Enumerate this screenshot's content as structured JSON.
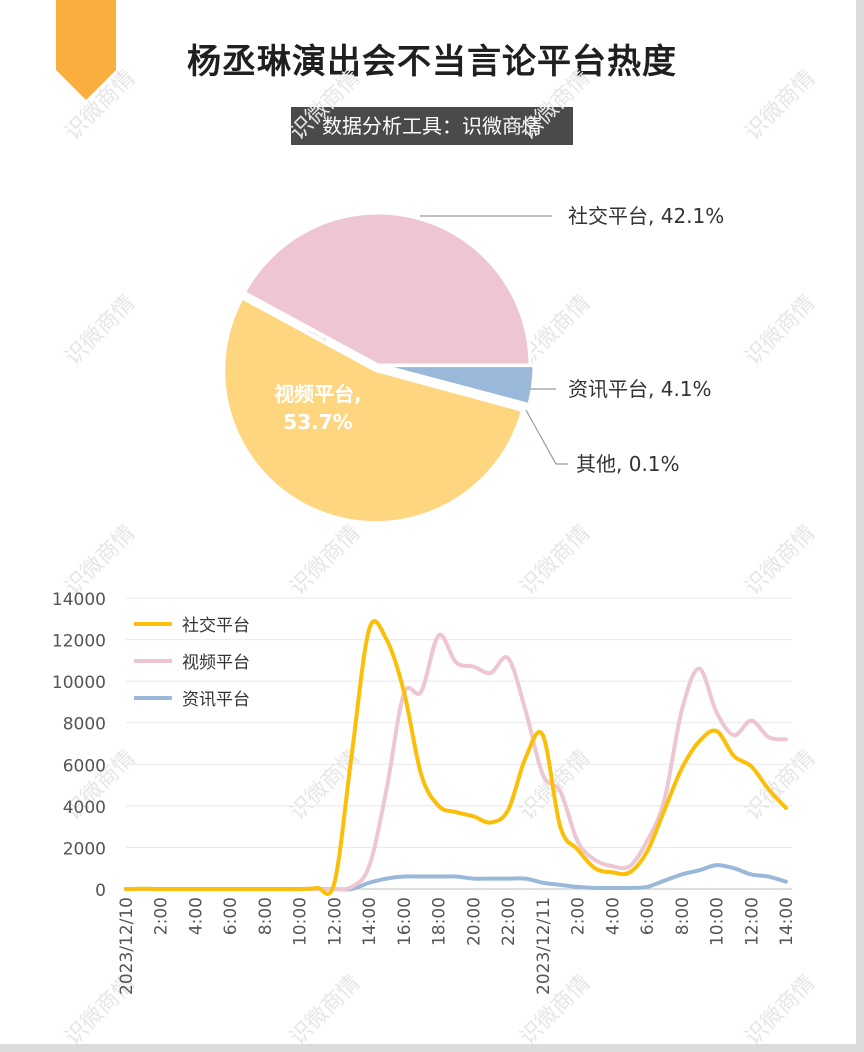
{
  "header": {
    "title": "杨丞琳演出会不当言论平台热度",
    "subtitle": "数据分析工具：识微商情"
  },
  "watermark": "识微商情",
  "colors": {
    "social": "#FBBF0A",
    "video": "#EEC6D2",
    "news": "#9AB8D9",
    "video_pie": "#FED67F",
    "other": "#C9C9C9",
    "bookmark": "#FAAE3D"
  },
  "chart_data": [
    {
      "type": "pie",
      "slices": [
        {
          "name": "社交平台",
          "value": 42.1,
          "label": "社交平台, 42.1%"
        },
        {
          "name": "资讯平台",
          "value": 4.1,
          "label": "资讯平台, 4.1%"
        },
        {
          "name": "其他",
          "value": 0.1,
          "label": "其他, 0.1%"
        },
        {
          "name": "视频平台",
          "value": 53.7,
          "label_line1": "视频平台,",
          "label_line2": "53.7%"
        }
      ]
    },
    {
      "type": "line",
      "x_ticks": [
        "2023/12/10",
        "2:00",
        "4:00",
        "6:00",
        "8:00",
        "10:00",
        "12:00",
        "14:00",
        "16:00",
        "18:00",
        "20:00",
        "22:00",
        "2023/12/11",
        "2:00",
        "4:00",
        "6:00",
        "8:00",
        "10:00",
        "12:00",
        "14:00"
      ],
      "x_hours_note": "hourly points from 2023/12/10 0:00 to 2023/12/11 14:00",
      "y_ticks": [
        "0",
        "2000",
        "4000",
        "6000",
        "8000",
        "10000",
        "12000",
        "14000"
      ],
      "ylim": [
        0,
        14000
      ],
      "grid": true,
      "legend_position": "top-left",
      "series": [
        {
          "name": "社交平台",
          "values": [
            0,
            10,
            0,
            0,
            0,
            0,
            0,
            0,
            0,
            0,
            0,
            50,
            300,
            6500,
            12500,
            12000,
            9500,
            5500,
            4000,
            3700,
            3500,
            3200,
            3800,
            6300,
            7400,
            3000,
            1900,
            1000,
            800,
            800,
            1800,
            3800,
            5800,
            7100,
            7600,
            6400,
            5900,
            4800,
            3900
          ]
        },
        {
          "name": "视频平台",
          "values": [
            0,
            0,
            0,
            0,
            0,
            0,
            0,
            0,
            0,
            0,
            0,
            0,
            0,
            100,
            1100,
            4800,
            9400,
            9500,
            12200,
            10900,
            10700,
            10400,
            11100,
            8600,
            5500,
            4700,
            2300,
            1400,
            1100,
            1100,
            2300,
            4300,
            8600,
            10600,
            8500,
            7400,
            8100,
            7300,
            7200
          ]
        },
        {
          "name": "资讯平台",
          "values": [
            0,
            0,
            0,
            0,
            0,
            0,
            0,
            0,
            0,
            0,
            0,
            0,
            0,
            0,
            300,
            500,
            600,
            600,
            600,
            600,
            500,
            500,
            500,
            500,
            300,
            200,
            100,
            50,
            50,
            50,
            100,
            400,
            700,
            900,
            1150,
            1000,
            700,
            600,
            350
          ]
        }
      ]
    }
  ]
}
